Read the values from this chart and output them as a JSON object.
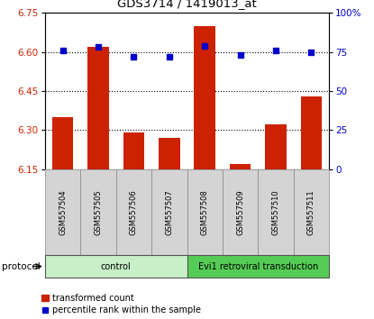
{
  "title": "GDS3714 / 1419013_at",
  "samples": [
    "GSM557504",
    "GSM557505",
    "GSM557506",
    "GSM557507",
    "GSM557508",
    "GSM557509",
    "GSM557510",
    "GSM557511"
  ],
  "red_values": [
    6.35,
    6.62,
    6.29,
    6.27,
    6.7,
    6.17,
    6.32,
    6.43
  ],
  "blue_values": [
    76,
    78,
    72,
    72,
    79,
    73,
    76,
    75
  ],
  "ylim_left": [
    6.15,
    6.75
  ],
  "ylim_right": [
    0,
    100
  ],
  "yticks_left": [
    6.15,
    6.3,
    6.45,
    6.6,
    6.75
  ],
  "yticks_right": [
    0,
    25,
    50,
    75,
    100
  ],
  "ytick_labels_right": [
    "0",
    "25",
    "50",
    "75",
    "100%"
  ],
  "hlines": [
    6.3,
    6.45,
    6.6
  ],
  "protocol_groups": [
    {
      "label": "control",
      "indices": [
        0,
        1,
        2,
        3
      ],
      "color": "#c8f0c8"
    },
    {
      "label": "Evi1 retroviral transduction",
      "indices": [
        4,
        5,
        6,
        7
      ],
      "color": "#55cc55"
    }
  ],
  "protocol_label": "protocol",
  "legend_red": "transformed count",
  "legend_blue": "percentile rank within the sample",
  "bar_color": "#cc2200",
  "dot_color": "#0000cc",
  "baseline": 6.15,
  "bar_width": 0.6,
  "sample_cell_color": "#d4d4d4",
  "spine_color": "#888888"
}
